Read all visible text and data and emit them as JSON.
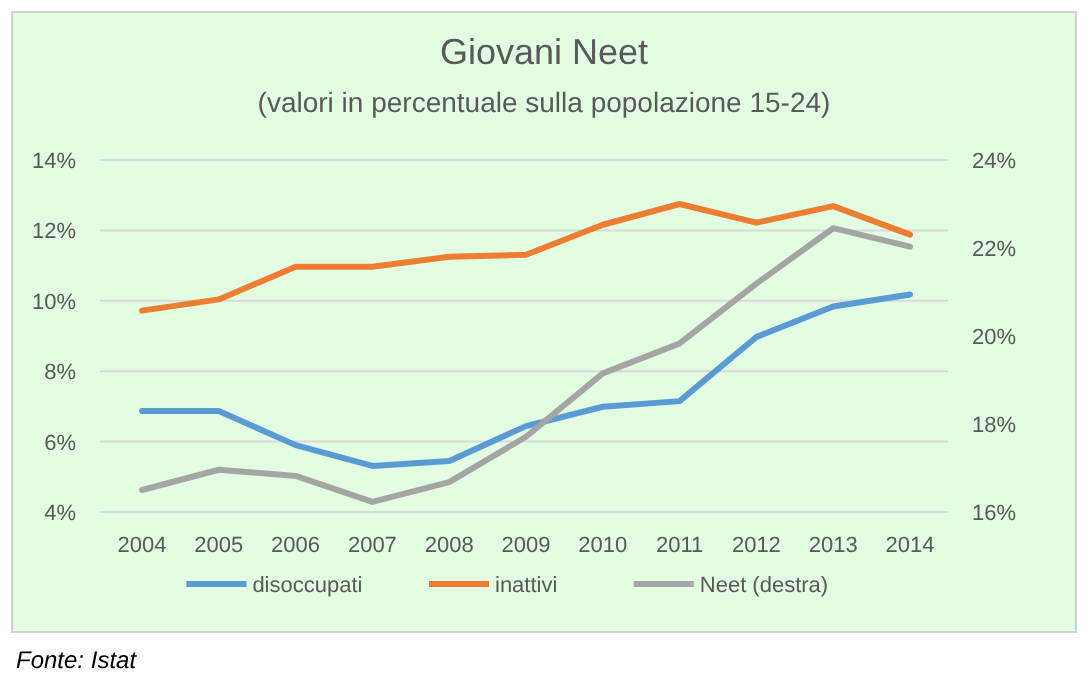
{
  "chart_data": {
    "type": "line",
    "title": "Giovani Neet",
    "subtitle": "(valori in percentuale sulla popolazione 15-24)",
    "categories": [
      "2004",
      "2005",
      "2006",
      "2007",
      "2008",
      "2009",
      "2010",
      "2011",
      "2012",
      "2013",
      "2014"
    ],
    "series": [
      {
        "name": "disoccupati",
        "color": "#5b9bd5",
        "values": [
          6.87,
          6.87,
          5.9,
          5.31,
          5.45,
          6.44,
          6.99,
          7.15,
          8.97,
          9.84,
          10.18
        ]
      },
      {
        "name": "inattivi",
        "color": "#ed7d31",
        "values": [
          9.72,
          10.04,
          10.97,
          10.97,
          11.25,
          11.31,
          12.16,
          12.75,
          12.22,
          12.69,
          11.88
        ]
      },
      {
        "name": "Neet (destra)",
        "color": "#a5a5a5",
        "axis": "y2",
        "values": [
          16.5,
          16.96,
          16.82,
          16.23,
          16.68,
          17.71,
          19.15,
          19.83,
          21.19,
          22.45,
          22.03
        ]
      }
    ],
    "ylim": [
      4,
      14
    ],
    "yticks": [
      {
        "value": 4,
        "label": "4%"
      },
      {
        "value": 6,
        "label": "6%"
      },
      {
        "value": 8,
        "label": "8%"
      },
      {
        "value": 10,
        "label": "10%"
      },
      {
        "value": 12,
        "label": "12%"
      },
      {
        "value": 14,
        "label": "14%"
      }
    ],
    "y2lim": [
      16,
      24
    ],
    "y2ticks": [
      {
        "value": 16,
        "label": "16%"
      },
      {
        "value": 18,
        "label": "18%"
      },
      {
        "value": 20,
        "label": "20%"
      },
      {
        "value": 22,
        "label": "22%"
      },
      {
        "value": 24,
        "label": "24%"
      }
    ],
    "grid": "y",
    "legend": "bottom",
    "marker": "none",
    "line_style": "solid",
    "annotations": [
      "Fonte: Istat"
    ]
  }
}
